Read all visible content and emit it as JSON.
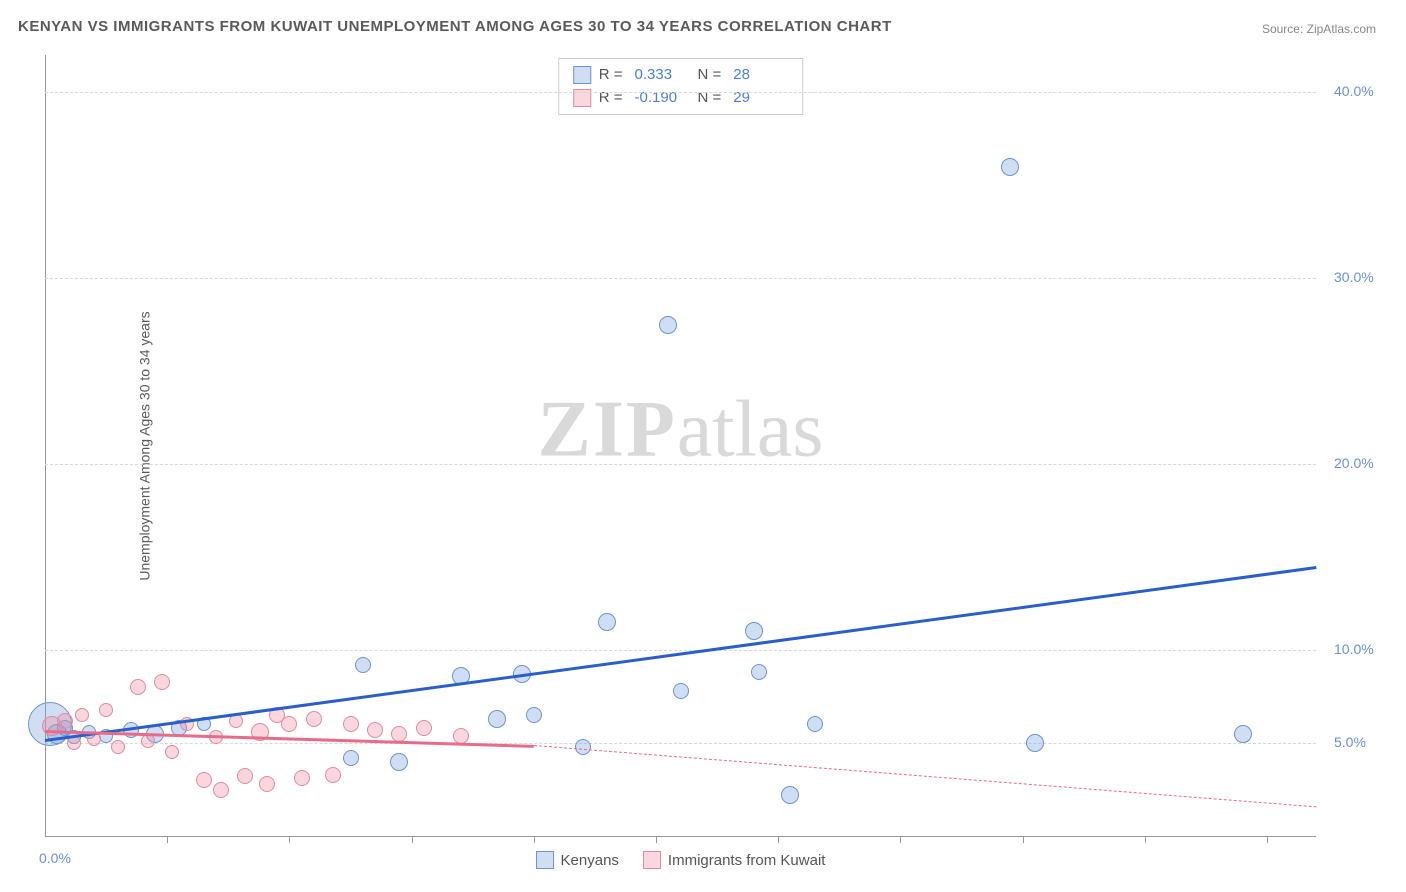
{
  "title": "KENYAN VS IMMIGRANTS FROM KUWAIT UNEMPLOYMENT AMONG AGES 30 TO 34 YEARS CORRELATION CHART",
  "source_prefix": "Source: ",
  "source_link": "ZipAtlas.com",
  "ylabel": "Unemployment Among Ages 30 to 34 years",
  "watermark_bold": "ZIP",
  "watermark_rest": "atlas",
  "chart": {
    "type": "scatter",
    "xlim": [
      0,
      5.2
    ],
    "ylim": [
      0,
      42
    ],
    "yticks": [
      {
        "v": 5,
        "label": "5.0%"
      },
      {
        "v": 10,
        "label": "10.0%"
      },
      {
        "v": 20,
        "label": "20.0%"
      },
      {
        "v": 30,
        "label": "30.0%"
      },
      {
        "v": 40,
        "label": "40.0%"
      }
    ],
    "xtick_positions": [
      0.5,
      1.0,
      1.5,
      2.0,
      2.5,
      3.0,
      3.5,
      4.0,
      4.5,
      5.0
    ],
    "origin_label": "0.0%",
    "grid_color": "#d8d8d8",
    "background_color": "#ffffff",
    "series": [
      {
        "name": "Kenyans",
        "fill": "rgba(120,160,220,0.35)",
        "stroke": "#6b94d2",
        "r_value": "0.333",
        "n_value": "28",
        "trend": {
          "x1": 0,
          "y1": 5.2,
          "x2": 5.2,
          "y2": 14.5,
          "color": "#2a5fc9",
          "width": 2.5
        },
        "points": [
          {
            "x": 0.02,
            "y": 6.0,
            "r": 22
          },
          {
            "x": 0.05,
            "y": 5.5,
            "r": 10
          },
          {
            "x": 0.08,
            "y": 5.8,
            "r": 8
          },
          {
            "x": 0.12,
            "y": 5.3,
            "r": 7
          },
          {
            "x": 0.18,
            "y": 5.6,
            "r": 7
          },
          {
            "x": 0.25,
            "y": 5.4,
            "r": 7
          },
          {
            "x": 0.35,
            "y": 5.7,
            "r": 8
          },
          {
            "x": 0.45,
            "y": 5.5,
            "r": 9
          },
          {
            "x": 0.55,
            "y": 5.8,
            "r": 8
          },
          {
            "x": 0.65,
            "y": 6.0,
            "r": 7
          },
          {
            "x": 1.25,
            "y": 4.2,
            "r": 8
          },
          {
            "x": 1.3,
            "y": 9.2,
            "r": 8
          },
          {
            "x": 1.45,
            "y": 4.0,
            "r": 9
          },
          {
            "x": 1.7,
            "y": 8.6,
            "r": 9
          },
          {
            "x": 1.85,
            "y": 6.3,
            "r": 9
          },
          {
            "x": 1.95,
            "y": 8.7,
            "r": 9
          },
          {
            "x": 2.0,
            "y": 6.5,
            "r": 8
          },
          {
            "x": 2.2,
            "y": 4.8,
            "r": 8
          },
          {
            "x": 2.3,
            "y": 11.5,
            "r": 9
          },
          {
            "x": 2.55,
            "y": 27.5,
            "r": 9
          },
          {
            "x": 2.6,
            "y": 7.8,
            "r": 8
          },
          {
            "x": 2.9,
            "y": 11.0,
            "r": 9
          },
          {
            "x": 2.92,
            "y": 8.8,
            "r": 8
          },
          {
            "x": 3.05,
            "y": 2.2,
            "r": 9
          },
          {
            "x": 3.15,
            "y": 6.0,
            "r": 8
          },
          {
            "x": 3.95,
            "y": 36.0,
            "r": 9
          },
          {
            "x": 4.05,
            "y": 5.0,
            "r": 9
          },
          {
            "x": 4.9,
            "y": 5.5,
            "r": 9
          }
        ]
      },
      {
        "name": "Immigrants from Kuwait",
        "fill": "rgba(240,140,160,0.35)",
        "stroke": "#e08aa0",
        "r_value": "-0.190",
        "n_value": "29",
        "trend_solid": {
          "x1": 0,
          "y1": 5.7,
          "x2": 2.0,
          "y2": 4.9,
          "color": "#e86b8a",
          "width": 2.5
        },
        "trend_dashed": {
          "x1": 2.0,
          "y1": 4.9,
          "x2": 5.2,
          "y2": 1.6,
          "color": "#e86b8a"
        },
        "points": [
          {
            "x": 0.03,
            "y": 5.9,
            "r": 10
          },
          {
            "x": 0.08,
            "y": 6.2,
            "r": 8
          },
          {
            "x": 0.12,
            "y": 5.0,
            "r": 7
          },
          {
            "x": 0.15,
            "y": 6.5,
            "r": 7
          },
          {
            "x": 0.2,
            "y": 5.2,
            "r": 7
          },
          {
            "x": 0.25,
            "y": 6.8,
            "r": 7
          },
          {
            "x": 0.3,
            "y": 4.8,
            "r": 7
          },
          {
            "x": 0.38,
            "y": 8.0,
            "r": 8
          },
          {
            "x": 0.42,
            "y": 5.1,
            "r": 7
          },
          {
            "x": 0.48,
            "y": 8.3,
            "r": 8
          },
          {
            "x": 0.52,
            "y": 4.5,
            "r": 7
          },
          {
            "x": 0.58,
            "y": 6.0,
            "r": 7
          },
          {
            "x": 0.65,
            "y": 3.0,
            "r": 8
          },
          {
            "x": 0.7,
            "y": 5.3,
            "r": 7
          },
          {
            "x": 0.72,
            "y": 2.5,
            "r": 8
          },
          {
            "x": 0.78,
            "y": 6.2,
            "r": 7
          },
          {
            "x": 0.82,
            "y": 3.2,
            "r": 8
          },
          {
            "x": 0.88,
            "y": 5.6,
            "r": 9
          },
          {
            "x": 0.91,
            "y": 2.8,
            "r": 8
          },
          {
            "x": 0.95,
            "y": 6.5,
            "r": 8
          },
          {
            "x": 1.0,
            "y": 6.0,
            "r": 8
          },
          {
            "x": 1.05,
            "y": 3.1,
            "r": 8
          },
          {
            "x": 1.1,
            "y": 6.3,
            "r": 8
          },
          {
            "x": 1.18,
            "y": 3.3,
            "r": 8
          },
          {
            "x": 1.25,
            "y": 6.0,
            "r": 8
          },
          {
            "x": 1.35,
            "y": 5.7,
            "r": 8
          },
          {
            "x": 1.45,
            "y": 5.5,
            "r": 8
          },
          {
            "x": 1.55,
            "y": 5.8,
            "r": 8
          },
          {
            "x": 1.7,
            "y": 5.4,
            "r": 8
          }
        ]
      }
    ]
  },
  "legend_top_label_r": "R =",
  "legend_top_label_n": "N ="
}
